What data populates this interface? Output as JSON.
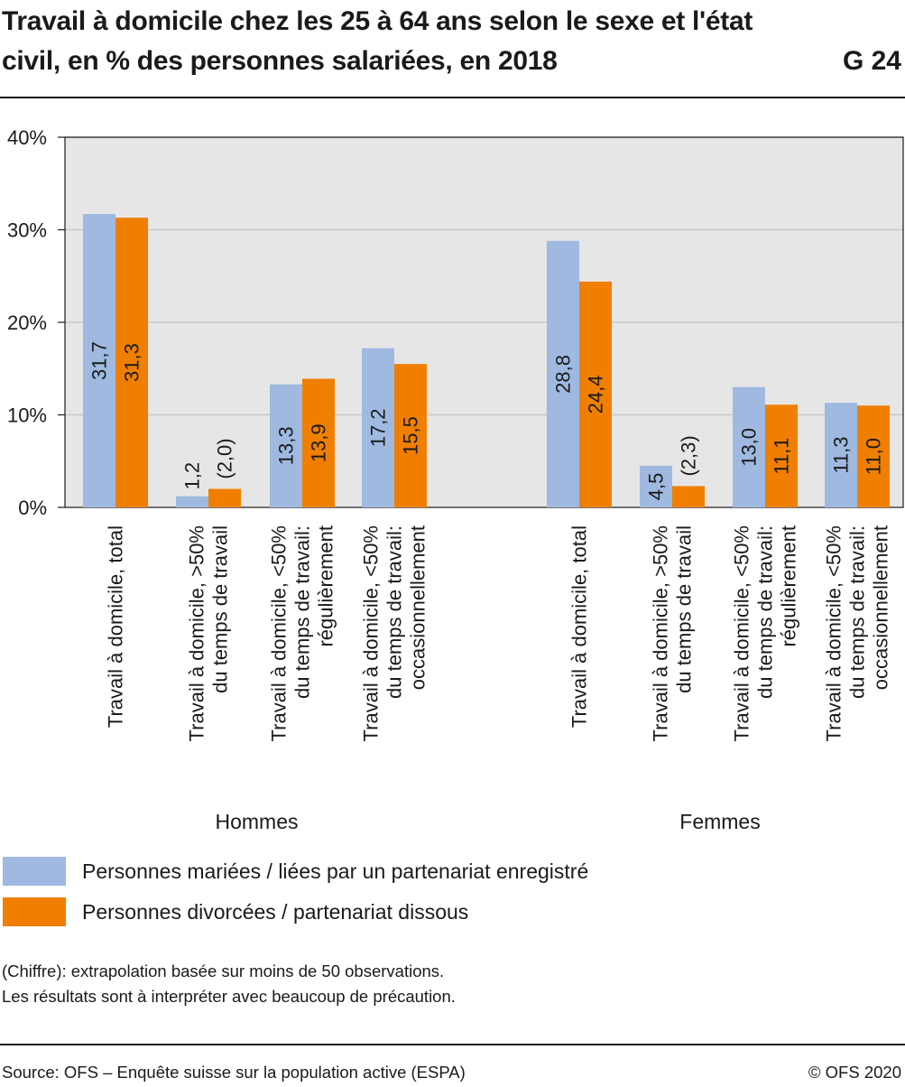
{
  "title": "Travail à domicile chez les 25 à 64 ans selon le sexe et l'état civil, en % des personnes salariées, en 2018",
  "chart_id": "G 24",
  "colors": {
    "series_1": "#9fb9e0",
    "series_2": "#f07f00",
    "grid": "#c8c8c8",
    "plot_bg": "#e6e6e6"
  },
  "chart_data": {
    "type": "bar",
    "ylim": [
      0,
      40
    ],
    "yticks": [
      "0%",
      "10%",
      "20%",
      "30%",
      "40%"
    ],
    "grid": true,
    "groups": [
      {
        "name": "Hommes",
        "categories": [
          "Travail à domicile, total",
          "Travail à domicile, >50% du temps de travail",
          "Travail à domicile, <50% du temps de travail: régulièrement",
          "Travail à domicile, <50% du temps de travail: occasionnellement"
        ]
      },
      {
        "name": "Femmes",
        "categories": [
          "Travail à domicile, total",
          "Travail à domicile, >50% du temps de travail",
          "Travail à domicile, <50% du temps de travail: régulièrement",
          "Travail à domicile, <50% du temps de travail: occasionnellement"
        ]
      }
    ],
    "category_label_lines": [
      [
        "Travail à domicile, total"
      ],
      [
        "Travail à domicile, >50%",
        "du temps de travail"
      ],
      [
        "Travail à domicile, <50%",
        "du temps de travail:",
        "régulièrement"
      ],
      [
        "Travail à domicile, <50%",
        "du temps de travail:",
        "occasionnellement"
      ]
    ],
    "series": [
      {
        "name": "Personnes mariées / liées par un partenariat enregistré",
        "values": [
          31.7,
          1.2,
          13.3,
          17.2,
          28.8,
          4.5,
          13.0,
          11.3
        ],
        "labels": [
          "31,7",
          "1,2",
          "13,3",
          "17,2",
          "28,8",
          "4,5",
          "13,0",
          "11,3"
        ]
      },
      {
        "name": "Personnes divorcées / partenariat dissous",
        "values": [
          31.3,
          2.0,
          13.9,
          15.5,
          24.4,
          2.3,
          11.1,
          11.0
        ],
        "labels": [
          "31,3",
          "(2,0)",
          "13,9",
          "15,5",
          "24,4",
          "(2,3)",
          "11,1",
          "11,0"
        ]
      }
    ]
  },
  "notes": [
    "(Chiffre): extrapolation basée sur moins de 50 observations.",
    "Les résultats sont à interpréter avec beaucoup de précaution."
  ],
  "source": "Source: OFS – Enquête suisse sur la population active (ESPA)",
  "copyright": "© OFS 2020"
}
